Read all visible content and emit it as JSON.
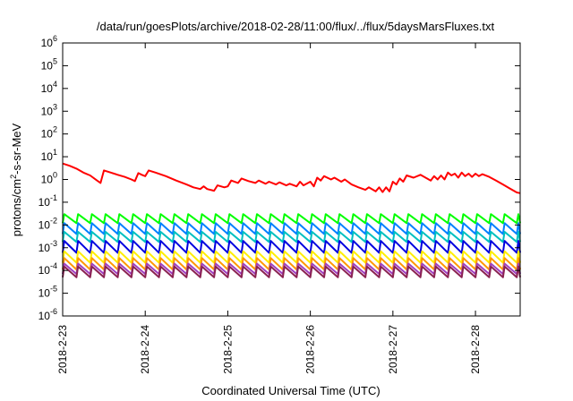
{
  "chart_data": {
    "type": "line",
    "title": "/data/run/goesPlots/archive/2018-02-28/11:00/flux/../flux/5daysMarsFluxes.txt",
    "xlabel": "Coordinated Universal Time (UTC)",
    "ylabel_prefix": "protons/cm",
    "ylabel_sup": "2",
    "ylabel_suffix": "-s-sr-MeV",
    "yscale": "log",
    "ylim": [
      1e-06,
      1000000.0
    ],
    "y_ticks": [
      {
        "base": "10",
        "exp": "-6",
        "value": 1e-06
      },
      {
        "base": "10",
        "exp": "-5",
        "value": 1e-05
      },
      {
        "base": "10",
        "exp": "-4",
        "value": 0.0001
      },
      {
        "base": "10",
        "exp": "-3",
        "value": 0.001
      },
      {
        "base": "10",
        "exp": "-2",
        "value": 0.01
      },
      {
        "base": "10",
        "exp": "-1",
        "value": 0.1
      },
      {
        "base": "10",
        "exp": "0",
        "value": 1
      },
      {
        "base": "10",
        "exp": "1",
        "value": 10
      },
      {
        "base": "10",
        "exp": "2",
        "value": 100
      },
      {
        "base": "10",
        "exp": "3",
        "value": 1000
      },
      {
        "base": "10",
        "exp": "4",
        "value": 10000
      },
      {
        "base": "10",
        "exp": "5",
        "value": 100000
      },
      {
        "base": "10",
        "exp": "6",
        "value": 1000000
      }
    ],
    "xlim": [
      "2018-02-23T00:00",
      "2018-02-28T13:00"
    ],
    "x_ticks": [
      {
        "label": "2018-2-23",
        "date": "2018-02-23"
      },
      {
        "label": "2018-2-24",
        "date": "2018-02-24"
      },
      {
        "label": "2018-2-25",
        "date": "2018-02-25"
      },
      {
        "label": "2018-2-26",
        "date": "2018-02-26"
      },
      {
        "label": "2018-2-27",
        "date": "2018-02-27"
      },
      {
        "label": "2018-2-28",
        "date": "2018-02-28"
      }
    ],
    "grid": false,
    "legend": "none",
    "series": [
      {
        "color": "#ff0000",
        "points": [
          [
            "2018-02-23T00:00",
            5.0
          ],
          [
            "2018-02-23T02:00",
            4.0
          ],
          [
            "2018-02-23T04:00",
            3.0
          ],
          [
            "2018-02-23T06:00",
            2.0
          ],
          [
            "2018-02-23T08:00",
            1.5
          ],
          [
            "2018-02-23T10:00",
            0.9
          ],
          [
            "2018-02-23T11:00",
            0.7
          ],
          [
            "2018-02-23T12:00",
            2.5
          ],
          [
            "2018-02-23T14:00",
            2.0
          ],
          [
            "2018-02-23T16:00",
            1.6
          ],
          [
            "2018-02-23T18:00",
            1.3
          ],
          [
            "2018-02-23T20:00",
            1.0
          ],
          [
            "2018-02-23T21:00",
            0.85
          ],
          [
            "2018-02-23T22:00",
            1.9
          ],
          [
            "2018-02-23T23:00",
            1.6
          ],
          [
            "2018-02-24T00:00",
            1.4
          ],
          [
            "2018-02-24T01:00",
            2.5
          ],
          [
            "2018-02-24T03:00",
            2.0
          ],
          [
            "2018-02-24T06:00",
            1.4
          ],
          [
            "2018-02-24T09:00",
            0.9
          ],
          [
            "2018-02-24T12:00",
            0.6
          ],
          [
            "2018-02-24T14:00",
            0.45
          ],
          [
            "2018-02-24T16:00",
            0.38
          ],
          [
            "2018-02-24T17:00",
            0.5
          ],
          [
            "2018-02-24T18:00",
            0.38
          ],
          [
            "2018-02-24T20:00",
            0.32
          ],
          [
            "2018-02-24T21:00",
            0.55
          ],
          [
            "2018-02-24T23:00",
            0.45
          ],
          [
            "2018-02-25T00:00",
            0.5
          ],
          [
            "2018-02-25T01:00",
            0.9
          ],
          [
            "2018-02-25T03:00",
            0.7
          ],
          [
            "2018-02-25T04:00",
            1.1
          ],
          [
            "2018-02-25T06:00",
            0.85
          ],
          [
            "2018-02-25T08:00",
            0.7
          ],
          [
            "2018-02-25T09:00",
            0.9
          ],
          [
            "2018-02-25T11:00",
            0.65
          ],
          [
            "2018-02-25T12:00",
            0.8
          ],
          [
            "2018-02-25T14:00",
            0.6
          ],
          [
            "2018-02-25T15:00",
            0.75
          ],
          [
            "2018-02-25T17:00",
            0.55
          ],
          [
            "2018-02-25T18:00",
            0.65
          ],
          [
            "2018-02-25T20:00",
            0.5
          ],
          [
            "2018-02-25T21:00",
            0.8
          ],
          [
            "2018-02-25T22:00",
            0.55
          ],
          [
            "2018-02-26T00:00",
            0.8
          ],
          [
            "2018-02-26T01:00",
            0.5
          ],
          [
            "2018-02-26T02:00",
            1.2
          ],
          [
            "2018-02-26T03:00",
            0.9
          ],
          [
            "2018-02-26T04:00",
            1.4
          ],
          [
            "2018-02-26T06:00",
            1.0
          ],
          [
            "2018-02-26T07:00",
            1.2
          ],
          [
            "2018-02-26T09:00",
            0.8
          ],
          [
            "2018-02-26T10:00",
            1.0
          ],
          [
            "2018-02-26T12:00",
            0.6
          ],
          [
            "2018-02-26T14:00",
            0.45
          ],
          [
            "2018-02-26T16:00",
            0.35
          ],
          [
            "2018-02-26T17:00",
            0.45
          ],
          [
            "2018-02-26T19:00",
            0.3
          ],
          [
            "2018-02-26T20:00",
            0.45
          ],
          [
            "2018-02-26T21:00",
            0.28
          ],
          [
            "2018-02-26T22:00",
            0.45
          ],
          [
            "2018-02-26T23:00",
            0.3
          ],
          [
            "2018-02-27T00:00",
            0.8
          ],
          [
            "2018-02-27T01:00",
            0.6
          ],
          [
            "2018-02-27T02:00",
            1.1
          ],
          [
            "2018-02-27T03:00",
            0.8
          ],
          [
            "2018-02-27T04:00",
            1.5
          ],
          [
            "2018-02-27T06:00",
            1.2
          ],
          [
            "2018-02-27T08:00",
            1.6
          ],
          [
            "2018-02-27T11:00",
            0.9
          ],
          [
            "2018-02-27T12:00",
            1.4
          ],
          [
            "2018-02-27T13:00",
            1.0
          ],
          [
            "2018-02-27T14:00",
            1.5
          ],
          [
            "2018-02-27T15:00",
            1.0
          ],
          [
            "2018-02-27T16:00",
            2.0
          ],
          [
            "2018-02-27T17:00",
            1.5
          ],
          [
            "2018-02-27T18:00",
            1.8
          ],
          [
            "2018-02-27T19:00",
            1.2
          ],
          [
            "2018-02-27T20:00",
            2.0
          ],
          [
            "2018-02-27T21:00",
            1.4
          ],
          [
            "2018-02-27T22:00",
            1.8
          ],
          [
            "2018-02-27T23:00",
            1.3
          ],
          [
            "2018-02-28T00:00",
            1.8
          ],
          [
            "2018-02-28T01:00",
            1.4
          ],
          [
            "2018-02-28T02:00",
            1.7
          ],
          [
            "2018-02-28T04:00",
            1.3
          ],
          [
            "2018-02-28T06:00",
            0.9
          ],
          [
            "2018-02-28T08:00",
            0.6
          ],
          [
            "2018-02-28T10:00",
            0.4
          ],
          [
            "2018-02-28T12:00",
            0.27
          ],
          [
            "2018-02-28T13:00",
            0.25
          ]
        ]
      },
      {
        "color": "#00ff00",
        "pattern": "sawtooth",
        "period_hours": 4,
        "start": "2018-02-23T00:00",
        "end": "2018-02-28T13:00",
        "peak": 0.03,
        "trough": 0.012
      },
      {
        "color": "#0080ff",
        "pattern": "sawtooth",
        "period_hours": 4,
        "start": "2018-02-23T00:00",
        "end": "2018-02-28T13:00",
        "peak": 0.012,
        "trough": 0.004
      },
      {
        "color": "#00c0c0",
        "pattern": "sawtooth",
        "period_hours": 4,
        "start": "2018-02-23T00:00",
        "end": "2018-02-28T13:00",
        "peak": 0.005,
        "trough": 0.0018
      },
      {
        "color": "#0000e0",
        "pattern": "sawtooth",
        "period_hours": 4,
        "start": "2018-02-23T00:00",
        "end": "2018-02-28T13:00",
        "peak": 0.002,
        "trough": 0.0006
      },
      {
        "color": "#ffee00",
        "pattern": "sawtooth",
        "period_hours": 4,
        "start": "2018-02-23T00:00",
        "end": "2018-02-28T13:00",
        "peak": 0.0007,
        "trough": 0.00022
      },
      {
        "color": "#ff9900",
        "pattern": "sawtooth",
        "period_hours": 4,
        "start": "2018-02-23T00:00",
        "end": "2018-02-28T13:00",
        "peak": 0.00035,
        "trough": 0.00011
      },
      {
        "color": "#a040c0",
        "pattern": "sawtooth",
        "period_hours": 4,
        "start": "2018-02-23T00:00",
        "end": "2018-02-28T13:00",
        "peak": 0.0002,
        "trough": 7e-05
      },
      {
        "color": "#8b2252",
        "pattern": "sawtooth",
        "period_hours": 4,
        "start": "2018-02-23T00:00",
        "end": "2018-02-28T13:00",
        "peak": 0.00015,
        "trough": 5e-05
      }
    ]
  }
}
